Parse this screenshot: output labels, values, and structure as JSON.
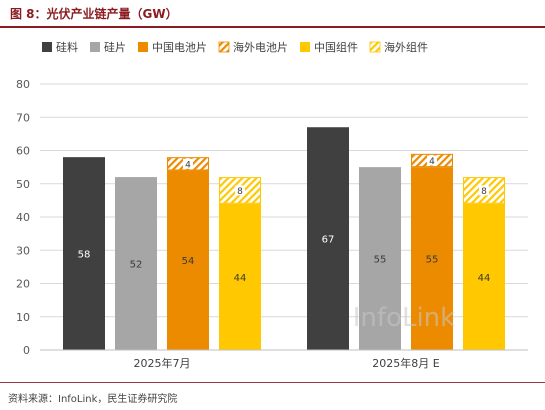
{
  "header": {
    "title": "图 8：光伏产业链产量（GW）"
  },
  "footer": {
    "source": "资料来源：InfoLink，民生证券研究院"
  },
  "watermark": "InfoLink",
  "colors": {
    "silicon": "#404040",
    "wafer": "#a6a6a6",
    "china_cell": "#ed8b00",
    "overseas_cell": "#ed8b00",
    "china_module": "#ffc800",
    "overseas_module": "#ffc800",
    "grid": "#d9d9d9",
    "axis": "#bfbfbf",
    "accent": "#8a1c22"
  },
  "chart_data": {
    "type": "bar",
    "stacked_partial": true,
    "categories": [
      "2025年7月",
      "2025年8月 E"
    ],
    "legend_position": "top",
    "grid": true,
    "ylim": [
      0,
      80
    ],
    "yticks": [
      0,
      10,
      20,
      30,
      40,
      50,
      60,
      70,
      80
    ],
    "series": [
      {
        "name": "硅料",
        "key": "silicon",
        "values": [
          58,
          67
        ],
        "pattern": false
      },
      {
        "name": "硅片",
        "key": "wafer",
        "values": [
          52,
          55
        ],
        "pattern": false
      },
      {
        "name": "中国电池片",
        "key": "china_cell",
        "values": [
          54,
          55
        ],
        "pattern": false
      },
      {
        "name": "海外电池片",
        "key": "overseas_cell",
        "values": [
          4,
          4
        ],
        "pattern": true,
        "stack_on": "china_cell"
      },
      {
        "name": "中国组件",
        "key": "china_module",
        "values": [
          44,
          44
        ],
        "pattern": false
      },
      {
        "name": "海外组件",
        "key": "overseas_module",
        "values": [
          8,
          8
        ],
        "pattern": true,
        "stack_on": "china_module"
      }
    ]
  }
}
